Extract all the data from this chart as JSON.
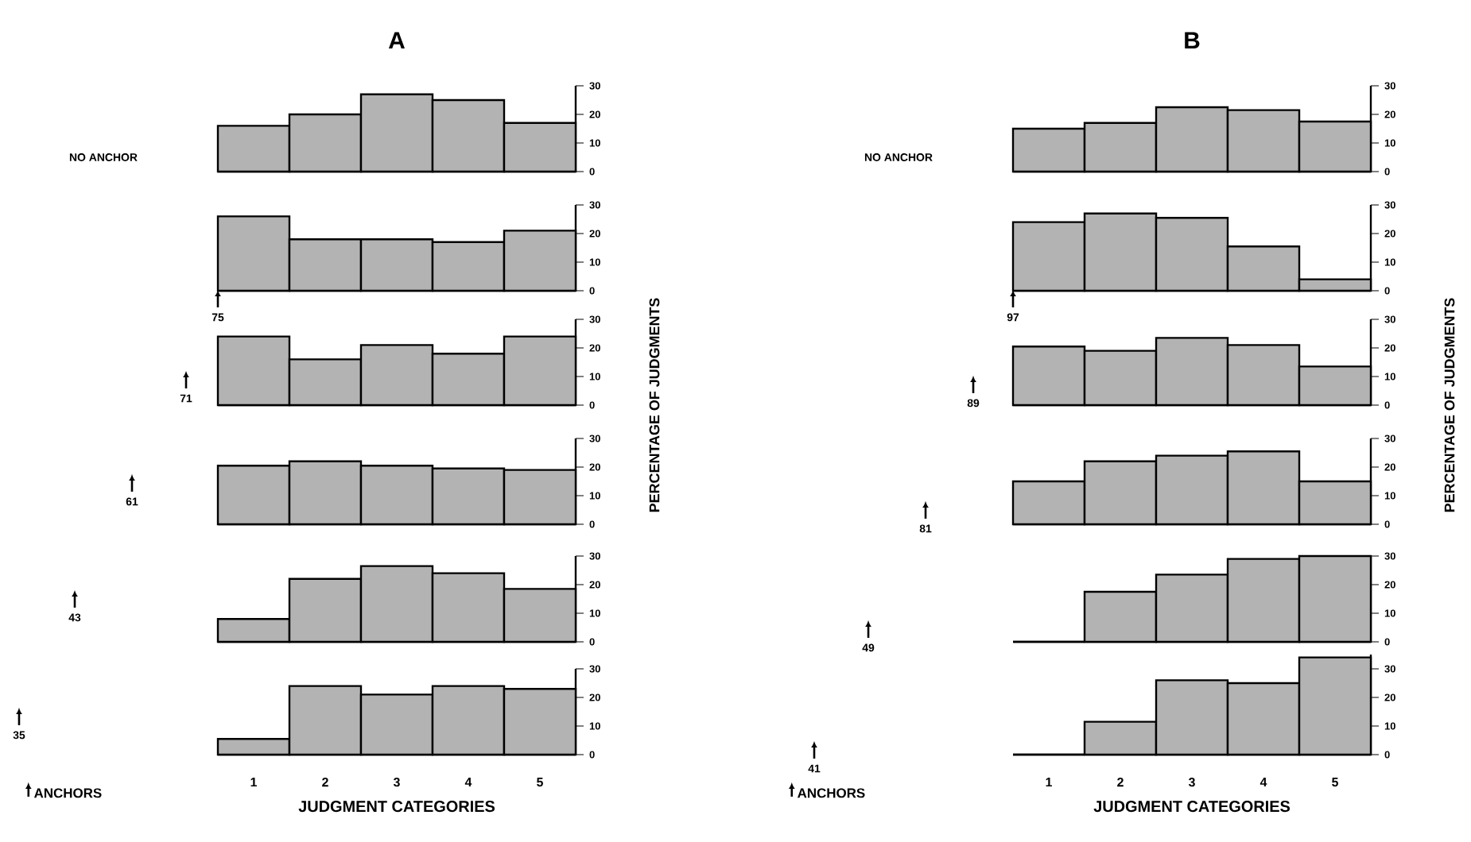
{
  "chart_data": [
    {
      "type": "bar",
      "title": "A",
      "categories": [
        "1",
        "2",
        "3",
        "4",
        "5"
      ],
      "values": [
        16,
        20,
        27,
        25,
        17
      ],
      "color": "#b3b3b3",
      "ylim": [
        0,
        30
      ],
      "yticks": [
        0,
        10,
        20,
        30
      ],
      "tick_labels": "y",
      "annotations": [
        "NO ANCHOR"
      ]
    },
    {
      "type": "bar",
      "categories": [
        "1",
        "2",
        "3",
        "4",
        "5"
      ],
      "values": [
        26,
        18,
        18,
        17,
        21
      ],
      "color": "#b3b3b3",
      "ylim": [
        0,
        30
      ],
      "yticks": [
        0,
        10,
        20,
        30
      ],
      "tick_labels": "y",
      "annotations": [
        "75"
      ]
    },
    {
      "type": "bar",
      "ylabel": "PERCENTAGE OF JUDGMENTS",
      "categories": [
        "1",
        "2",
        "3",
        "4",
        "5"
      ],
      "values": [
        24,
        16,
        21,
        18,
        24
      ],
      "color": "#b3b3b3",
      "ylim": [
        0,
        30
      ],
      "yticks": [
        0,
        10,
        20,
        30
      ],
      "tick_labels": "y",
      "annotations": [
        "71"
      ]
    },
    {
      "type": "bar",
      "categories": [
        "1",
        "2",
        "3",
        "4",
        "5"
      ],
      "values": [
        20.5,
        22,
        20.5,
        19.5,
        19
      ],
      "color": "#b3b3b3",
      "ylim": [
        0,
        30
      ],
      "yticks": [
        0,
        10,
        20,
        30
      ],
      "tick_labels": "y",
      "annotations": [
        "61"
      ]
    },
    {
      "type": "bar",
      "categories": [
        "1",
        "2",
        "3",
        "4",
        "5"
      ],
      "values": [
        8,
        22,
        26.5,
        24,
        18.5
      ],
      "color": "#b3b3b3",
      "ylim": [
        0,
        30
      ],
      "yticks": [
        0,
        10,
        20,
        30
      ],
      "tick_labels": "y",
      "annotations": [
        "43"
      ]
    },
    {
      "type": "bar",
      "xlabel": "JUDGMENT CATEGORIES",
      "categories": [
        "1",
        "2",
        "3",
        "4",
        "5"
      ],
      "values": [
        5.5,
        24,
        21,
        24,
        23
      ],
      "color": "#b3b3b3",
      "ylim": [
        0,
        30
      ],
      "yticks": [
        0,
        10,
        20,
        30
      ],
      "annotations": [
        "35",
        "ANCHORS"
      ]
    },
    {
      "type": "bar",
      "title": "B",
      "categories": [
        "1",
        "2",
        "3",
        "4",
        "5"
      ],
      "values": [
        15,
        17,
        22.5,
        21.5,
        17.5
      ],
      "color": "#b3b3b3",
      "ylim": [
        0,
        30
      ],
      "yticks": [
        0,
        10,
        20,
        30
      ],
      "tick_labels": "y",
      "annotations": [
        "NO ANCHOR"
      ]
    },
    {
      "type": "bar",
      "categories": [
        "1",
        "2",
        "3",
        "4",
        "5"
      ],
      "values": [
        24,
        27,
        25.5,
        15.5,
        4
      ],
      "color": "#b3b3b3",
      "ylim": [
        0,
        30
      ],
      "yticks": [
        0,
        10,
        20,
        30
      ],
      "tick_labels": "y",
      "annotations": [
        "97"
      ]
    },
    {
      "type": "bar",
      "ylabel": "PERCENTAGE OF JUDGMENTS",
      "categories": [
        "1",
        "2",
        "3",
        "4",
        "5"
      ],
      "values": [
        20.5,
        19,
        23.5,
        21,
        13.5
      ],
      "color": "#b3b3b3",
      "ylim": [
        0,
        30
      ],
      "yticks": [
        0,
        10,
        20,
        30
      ],
      "tick_labels": "y",
      "annotations": [
        "89"
      ]
    },
    {
      "type": "bar",
      "categories": [
        "1",
        "2",
        "3",
        "4",
        "5"
      ],
      "values": [
        15,
        22,
        24,
        25.5,
        15
      ],
      "color": "#b3b3b3",
      "ylim": [
        0,
        30
      ],
      "yticks": [
        0,
        10,
        20,
        30
      ],
      "tick_labels": "y",
      "annotations": [
        "81"
      ]
    },
    {
      "type": "bar",
      "categories": [
        "1",
        "2",
        "3",
        "4",
        "5"
      ],
      "values": [
        0,
        17.5,
        23.5,
        29,
        30
      ],
      "color": "#b3b3b3",
      "ylim": [
        0,
        30
      ],
      "yticks": [
        0,
        10,
        20,
        30
      ],
      "tick_labels": "y",
      "annotations": [
        "49"
      ]
    },
    {
      "type": "bar",
      "xlabel": "JUDGMENT CATEGORIES",
      "categories": [
        "1",
        "2",
        "3",
        "4",
        "5"
      ],
      "values": [
        0,
        11.5,
        26,
        25,
        34
      ],
      "color": "#b3b3b3",
      "ylim": [
        0,
        35
      ],
      "yticks": [
        0,
        10,
        20,
        30
      ],
      "annotations": [
        "41",
        "ANCHORS"
      ]
    }
  ]
}
